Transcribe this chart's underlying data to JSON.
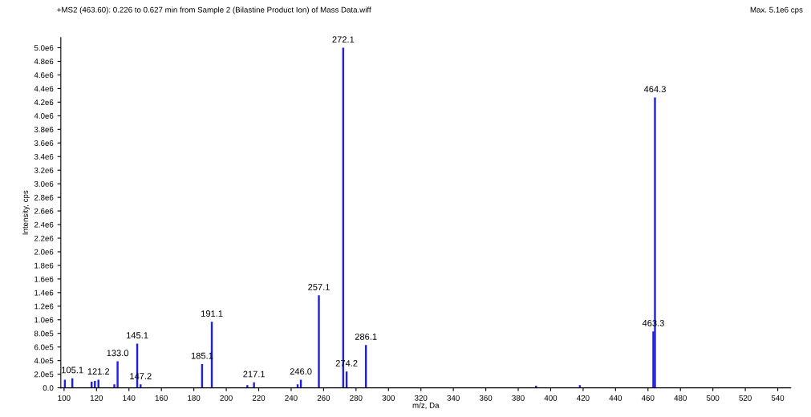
{
  "chart_data": {
    "type": "bar",
    "title": "+MS2 (463.60): 0.226 to 0.627 min from Sample 2 (Bilastine Product Ion) of Mass Data.wiff",
    "subtitle": "Max. 5.1e6 cps",
    "xlabel": "m/z, Da",
    "ylabel": "Intensity, cps",
    "x": [
      100.5,
      105.1,
      117.0,
      119.0,
      121.2,
      131.0,
      133.0,
      145.1,
      147.2,
      185.1,
      191.1,
      213.0,
      217.1,
      244.0,
      246.0,
      257.1,
      272.1,
      274.2,
      286.1,
      391.0,
      418.0,
      463.3,
      464.3
    ],
    "values": [
      120000,
      140000,
      90000,
      100000,
      120000,
      50000,
      390000,
      650000,
      50000,
      350000,
      970000,
      40000,
      80000,
      50000,
      120000,
      1360000,
      5000000,
      240000,
      630000,
      30000,
      40000,
      830000,
      4270000
    ],
    "annotations": [
      {
        "text": "105.1",
        "x": 105.1,
        "y": 140000
      },
      {
        "text": "121.2",
        "x": 121.2,
        "y": 120000
      },
      {
        "text": "133.0",
        "x": 133.0,
        "y": 390000
      },
      {
        "text": "145.1",
        "x": 145.1,
        "y": 650000
      },
      {
        "text": "147.2",
        "x": 147.2,
        "y": 50000
      },
      {
        "text": "185.1",
        "x": 185.1,
        "y": 350000
      },
      {
        "text": "191.1",
        "x": 191.1,
        "y": 970000
      },
      {
        "text": "217.1",
        "x": 217.1,
        "y": 80000
      },
      {
        "text": "246.0",
        "x": 246.0,
        "y": 120000
      },
      {
        "text": "257.1",
        "x": 257.1,
        "y": 1360000
      },
      {
        "text": "272.1",
        "x": 272.1,
        "y": 5000000
      },
      {
        "text": "274.2",
        "x": 274.2,
        "y": 240000
      },
      {
        "text": "286.1",
        "x": 286.1,
        "y": 630000
      },
      {
        "text": "463.3",
        "x": 463.3,
        "y": 830000
      },
      {
        "text": "464.3",
        "x": 464.3,
        "y": 4270000
      }
    ],
    "color": "#2020e0",
    "xlim": [
      98,
      548
    ],
    "xticks": [
      100,
      120,
      140,
      160,
      180,
      200,
      220,
      240,
      260,
      280,
      300,
      320,
      340,
      360,
      380,
      400,
      420,
      440,
      460,
      480,
      500,
      520,
      540
    ],
    "ylim": [
      0,
      5150000
    ],
    "yticks": [
      {
        "value": 0,
        "label": "0.0"
      },
      {
        "value": 200000,
        "label": "2.0e5"
      },
      {
        "value": 400000,
        "label": "4.0e5"
      },
      {
        "value": 600000,
        "label": "6.0e5"
      },
      {
        "value": 800000,
        "label": "8.0e5"
      },
      {
        "value": 1000000,
        "label": "1.0e6"
      },
      {
        "value": 1200000,
        "label": "1.2e6"
      },
      {
        "value": 1400000,
        "label": "1.4e6"
      },
      {
        "value": 1600000,
        "label": "1.6e6"
      },
      {
        "value": 1800000,
        "label": "1.8e6"
      },
      {
        "value": 2000000,
        "label": "2.0e6"
      },
      {
        "value": 2200000,
        "label": "2.2e6"
      },
      {
        "value": 2400000,
        "label": "2.4e6"
      },
      {
        "value": 2600000,
        "label": "2.6e6"
      },
      {
        "value": 2800000,
        "label": "2.8e6"
      },
      {
        "value": 3000000,
        "label": "3.0e6"
      },
      {
        "value": 3200000,
        "label": "3.2e6"
      },
      {
        "value": 3400000,
        "label": "3.4e6"
      },
      {
        "value": 3600000,
        "label": "3.6e6"
      },
      {
        "value": 3800000,
        "label": "3.8e6"
      },
      {
        "value": 4000000,
        "label": "4.0e6"
      },
      {
        "value": 4200000,
        "label": "4.2e6"
      },
      {
        "value": 4400000,
        "label": "4.4e6"
      },
      {
        "value": 4600000,
        "label": "4.6e6"
      },
      {
        "value": 4800000,
        "label": "4.8e6"
      },
      {
        "value": 5000000,
        "label": "5.0e6"
      }
    ],
    "grid": false,
    "legend": false
  }
}
